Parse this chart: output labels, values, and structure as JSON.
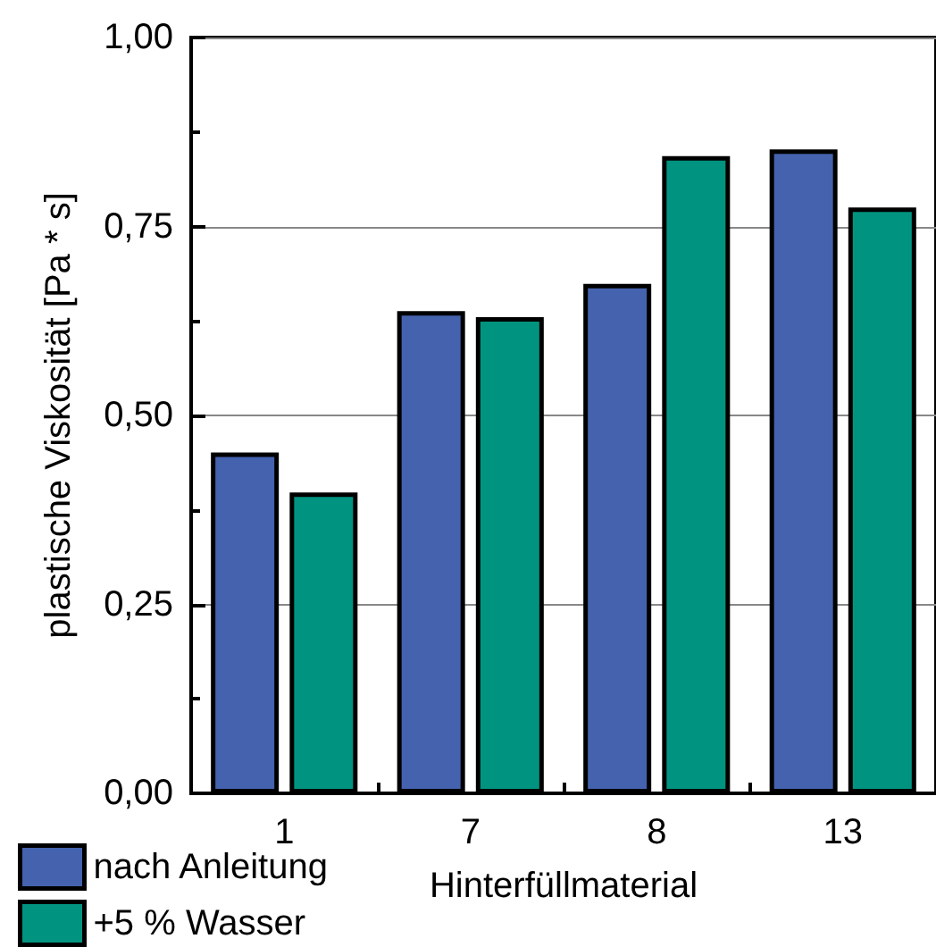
{
  "chart_data": {
    "type": "bar",
    "xlabel": "Hinterfüllmaterial",
    "ylabel": "plastische Viskosität [Pa * s]",
    "categories": [
      "1",
      "7",
      "8",
      "13"
    ],
    "series": [
      {
        "name": "nach Anleitung",
        "color": "#4462ad",
        "values": [
          0.451,
          0.638,
          0.674,
          0.852
        ]
      },
      {
        "name": "+5 % Wasser",
        "color": "#009480",
        "values": [
          0.398,
          0.63,
          0.843,
          0.775
        ]
      }
    ],
    "ylim": [
      0,
      1
    ],
    "yticks": [
      {
        "value": 0,
        "label": "0,00"
      },
      {
        "value": 0.125,
        "label": null
      },
      {
        "value": 0.25,
        "label": "0,25"
      },
      {
        "value": 0.375,
        "label": null
      },
      {
        "value": 0.5,
        "label": "0,50"
      },
      {
        "value": 0.625,
        "label": null
      },
      {
        "value": 0.75,
        "label": "0,75"
      },
      {
        "value": 0.875,
        "label": null
      },
      {
        "value": 1,
        "label": "1,00"
      }
    ],
    "grid": "y",
    "legend": "bottom left"
  }
}
